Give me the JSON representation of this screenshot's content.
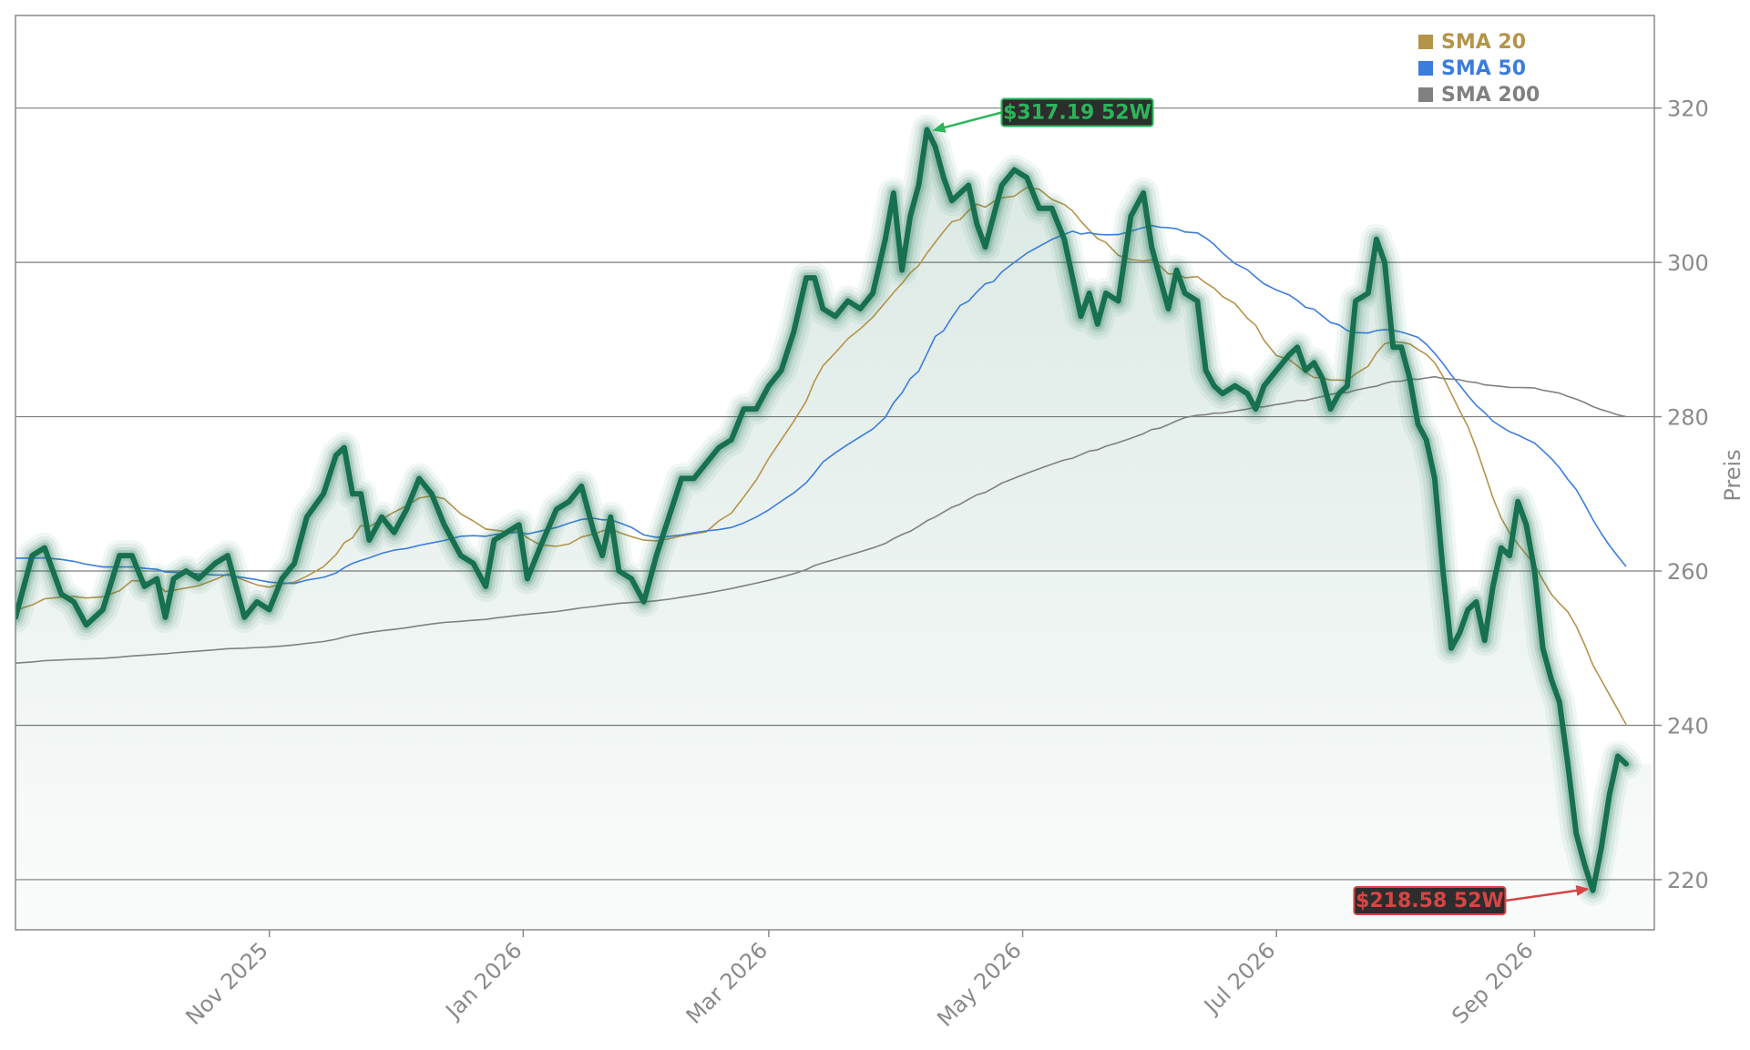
{
  "chart_data": {
    "type": "line",
    "title": "",
    "xlabel": "",
    "ylabel": "Preis",
    "x_range": [
      "2025-09-01",
      "2026-09-23"
    ],
    "ylim": [
      213.5,
      332
    ],
    "y_ticks": [
      220,
      240,
      260,
      280,
      300,
      320
    ],
    "x_ticks": [
      {
        "date": "2025-11-01",
        "label": "Nov 2025"
      },
      {
        "date": "2026-01-01",
        "label": "Jan 2026"
      },
      {
        "date": "2026-03-01",
        "label": "Mar 2026"
      },
      {
        "date": "2026-05-01",
        "label": "May 2026"
      },
      {
        "date": "2026-07-01",
        "label": "Jul 2026"
      },
      {
        "date": "2026-09-01",
        "label": "Sep 2026"
      }
    ],
    "grid": "horizontal",
    "legend_position": "top-right",
    "series": [
      {
        "name": "",
        "color": "#17704f",
        "points": [
          [
            "2025-09-01",
            254
          ],
          [
            "2025-09-05",
            262
          ],
          [
            "2025-09-08",
            263
          ],
          [
            "2025-09-12",
            257
          ],
          [
            "2025-09-15",
            256
          ],
          [
            "2025-09-18",
            253
          ],
          [
            "2025-09-22",
            255
          ],
          [
            "2025-09-26",
            262
          ],
          [
            "2025-09-29",
            262
          ],
          [
            "2025-10-02",
            258
          ],
          [
            "2025-10-05",
            259
          ],
          [
            "2025-10-07",
            254
          ],
          [
            "2025-10-09",
            259
          ],
          [
            "2025-10-12",
            260
          ],
          [
            "2025-10-15",
            259
          ],
          [
            "2025-10-19",
            261
          ],
          [
            "2025-10-22",
            262
          ],
          [
            "2025-10-26",
            254
          ],
          [
            "2025-10-29",
            256
          ],
          [
            "2025-11-01",
            255
          ],
          [
            "2025-11-04",
            259
          ],
          [
            "2025-11-07",
            261
          ],
          [
            "2025-11-10",
            267
          ],
          [
            "2025-11-14",
            270
          ],
          [
            "2025-11-17",
            275
          ],
          [
            "2025-11-19",
            276
          ],
          [
            "2025-11-21",
            270
          ],
          [
            "2025-11-23",
            270
          ],
          [
            "2025-11-25",
            264
          ],
          [
            "2025-11-28",
            267
          ],
          [
            "2025-12-01",
            265
          ],
          [
            "2025-12-04",
            268
          ],
          [
            "2025-12-07",
            272
          ],
          [
            "2025-12-10",
            270
          ],
          [
            "2025-12-13",
            266
          ],
          [
            "2025-12-17",
            262
          ],
          [
            "2025-12-20",
            261
          ],
          [
            "2025-12-23",
            258
          ],
          [
            "2025-12-25",
            264
          ],
          [
            "2025-12-28",
            265
          ],
          [
            "2025-12-31",
            266
          ],
          [
            "2026-01-02",
            259
          ],
          [
            "2026-01-05",
            263
          ],
          [
            "2026-01-09",
            268
          ],
          [
            "2026-01-12",
            269
          ],
          [
            "2026-01-15",
            271
          ],
          [
            "2026-01-18",
            265
          ],
          [
            "2026-01-20",
            262
          ],
          [
            "2026-01-22",
            267
          ],
          [
            "2026-01-24",
            260
          ],
          [
            "2026-01-27",
            259
          ],
          [
            "2026-01-30",
            256
          ],
          [
            "2026-02-02",
            262
          ],
          [
            "2026-02-05",
            267
          ],
          [
            "2026-02-08",
            272
          ],
          [
            "2026-02-11",
            272
          ],
          [
            "2026-02-14",
            274
          ],
          [
            "2026-02-17",
            276
          ],
          [
            "2026-02-20",
            277
          ],
          [
            "2026-02-23",
            281
          ],
          [
            "2026-02-26",
            281
          ],
          [
            "2026-03-01",
            284
          ],
          [
            "2026-03-04",
            286
          ],
          [
            "2026-03-07",
            291
          ],
          [
            "2026-03-10",
            298
          ],
          [
            "2026-03-12",
            298
          ],
          [
            "2026-03-14",
            294
          ],
          [
            "2026-03-17",
            293
          ],
          [
            "2026-03-20",
            295
          ],
          [
            "2026-03-23",
            294
          ],
          [
            "2026-03-26",
            296
          ],
          [
            "2026-03-29",
            303
          ],
          [
            "2026-03-31",
            309
          ],
          [
            "2026-04-02",
            299
          ],
          [
            "2026-04-04",
            306
          ],
          [
            "2026-04-06",
            310
          ],
          [
            "2026-04-08",
            317.2
          ],
          [
            "2026-04-10",
            315
          ],
          [
            "2026-04-12",
            311
          ],
          [
            "2026-04-14",
            308
          ],
          [
            "2026-04-16",
            309
          ],
          [
            "2026-04-18",
            310
          ],
          [
            "2026-04-20",
            305
          ],
          [
            "2026-04-22",
            302
          ],
          [
            "2026-04-24",
            306
          ],
          [
            "2026-04-26",
            310
          ],
          [
            "2026-04-29",
            312
          ],
          [
            "2026-05-02",
            311
          ],
          [
            "2026-05-05",
            307
          ],
          [
            "2026-05-08",
            307
          ],
          [
            "2026-05-11",
            303
          ],
          [
            "2026-05-13",
            298
          ],
          [
            "2026-05-15",
            293
          ],
          [
            "2026-05-17",
            296
          ],
          [
            "2026-05-19",
            292
          ],
          [
            "2026-05-21",
            296
          ],
          [
            "2026-05-24",
            295
          ],
          [
            "2026-05-27",
            306
          ],
          [
            "2026-05-30",
            309
          ],
          [
            "2026-06-01",
            302
          ],
          [
            "2026-06-03",
            298
          ],
          [
            "2026-06-05",
            294
          ],
          [
            "2026-06-07",
            299
          ],
          [
            "2026-06-09",
            296
          ],
          [
            "2026-06-12",
            295
          ],
          [
            "2026-06-14",
            286
          ],
          [
            "2026-06-16",
            284
          ],
          [
            "2026-06-18",
            283
          ],
          [
            "2026-06-21",
            284
          ],
          [
            "2026-06-24",
            283
          ],
          [
            "2026-06-26",
            281
          ],
          [
            "2026-06-28",
            284
          ],
          [
            "2026-07-01",
            286
          ],
          [
            "2026-07-04",
            288
          ],
          [
            "2026-07-06",
            289
          ],
          [
            "2026-07-08",
            286
          ],
          [
            "2026-07-10",
            287
          ],
          [
            "2026-07-12",
            285
          ],
          [
            "2026-07-14",
            281
          ],
          [
            "2026-07-16",
            283
          ],
          [
            "2026-07-18",
            284
          ],
          [
            "2026-07-20",
            295
          ],
          [
            "2026-07-23",
            296
          ],
          [
            "2026-07-25",
            303
          ],
          [
            "2026-07-27",
            300
          ],
          [
            "2026-07-29",
            289
          ],
          [
            "2026-07-31",
            289
          ],
          [
            "2026-08-02",
            285
          ],
          [
            "2026-08-04",
            279
          ],
          [
            "2026-08-06",
            277
          ],
          [
            "2026-08-08",
            272
          ],
          [
            "2026-08-10",
            260
          ],
          [
            "2026-08-12",
            250
          ],
          [
            "2026-08-14",
            252
          ],
          [
            "2026-08-16",
            255
          ],
          [
            "2026-08-18",
            256
          ],
          [
            "2026-08-20",
            251
          ],
          [
            "2026-08-22",
            258
          ],
          [
            "2026-08-24",
            263
          ],
          [
            "2026-08-26",
            262
          ],
          [
            "2026-08-28",
            269
          ],
          [
            "2026-08-30",
            266
          ],
          [
            "2026-09-01",
            260
          ],
          [
            "2026-09-03",
            250
          ],
          [
            "2026-09-05",
            246
          ],
          [
            "2026-09-07",
            243
          ],
          [
            "2026-09-09",
            235
          ],
          [
            "2026-09-11",
            226
          ],
          [
            "2026-09-13",
            222
          ],
          [
            "2026-09-15",
            218.6
          ],
          [
            "2026-09-17",
            224
          ],
          [
            "2026-09-19",
            231
          ],
          [
            "2026-09-21",
            236
          ],
          [
            "2026-09-23",
            235
          ]
        ]
      },
      {
        "name": "SMA 20",
        "color": "#b5944a"
      },
      {
        "name": "SMA 50",
        "color": "#3b7ddd"
      },
      {
        "name": "SMA 200",
        "color": "#808080"
      }
    ],
    "annotations": [
      {
        "label": "$317.19 52W",
        "value": 317.19,
        "style": "high",
        "color": "#2bb55a"
      },
      {
        "label": "$218.58 52W",
        "value": 218.58,
        "style": "low",
        "color": "#d64545"
      }
    ]
  }
}
